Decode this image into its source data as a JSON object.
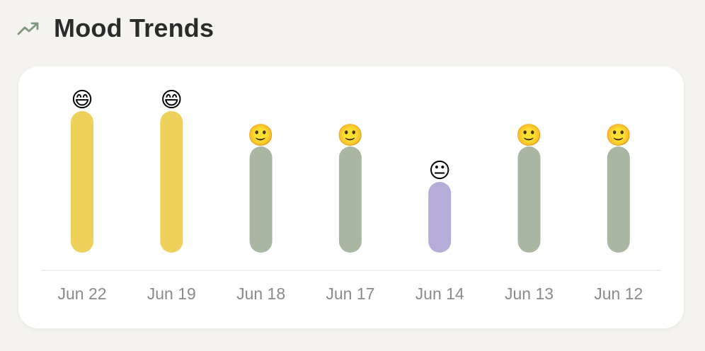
{
  "header": {
    "title": "Mood Trends",
    "icon": "trending-up-icon",
    "icon_color": "#7f977f"
  },
  "mood_colors": {
    "great": "#eed15b",
    "good": "#a9b6a2",
    "okay": "#b6acd9"
  },
  "chart_data": {
    "type": "bar",
    "categories": [
      "Jun 22",
      "Jun 19",
      "Jun 18",
      "Jun 17",
      "Jun 14",
      "Jun 13",
      "Jun 12"
    ],
    "series": [
      {
        "values": [
          4,
          4,
          3,
          3,
          2,
          3,
          3
        ],
        "moods": [
          "great",
          "great",
          "good",
          "good",
          "okay",
          "good",
          "good"
        ],
        "emojis": [
          "😄",
          "😄",
          "🙂",
          "🙂",
          "😐",
          "🙂",
          "🙂"
        ]
      }
    ],
    "ylim": [
      0,
      4
    ],
    "grid": false,
    "xlabel": "",
    "ylabel": ""
  }
}
